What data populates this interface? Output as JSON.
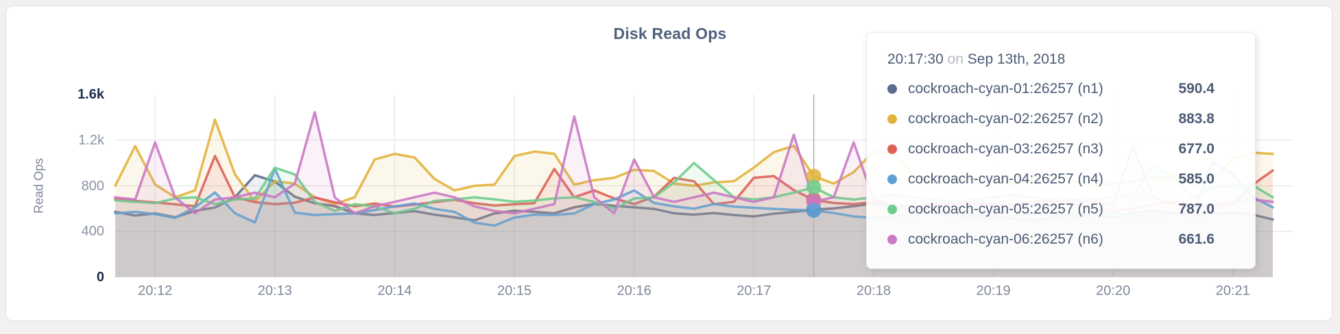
{
  "panel": {
    "title": "Disk Read Ops"
  },
  "colors": {
    "title_text": "#50607c",
    "tick_text": "#8a92a4",
    "tick_text_dark": "#1e2d4d",
    "axis_title_text": "#7d8596",
    "gridline": "#e9e9e9",
    "hover_guideline": "#b0b0b0",
    "tooltip_text": "#4c5b76",
    "tooltip_dim_text": "#b7bbc4",
    "panel_background": "#ffffff",
    "page_background": "#f1f1f2"
  },
  "tooltip": {
    "time": "20:17:30",
    "on": "on",
    "date": "Sep 13th, 2018",
    "rows": [
      {
        "label": "cockroach-cyan-01:26257 (n1)",
        "value": "590.4",
        "color": "#5b6c8f"
      },
      {
        "label": "cockroach-cyan-02:26257 (n2)",
        "value": "883.8",
        "color": "#e2b33c"
      },
      {
        "label": "cockroach-cyan-03:26257 (n3)",
        "value": "677.0",
        "color": "#de6158"
      },
      {
        "label": "cockroach-cyan-04:26257 (n4)",
        "value": "585.0",
        "color": "#5da2d7"
      },
      {
        "label": "cockroach-cyan-05:26257 (n5)",
        "value": "787.0",
        "color": "#6ecd8c"
      },
      {
        "label": "cockroach-cyan-06:26257 (n6)",
        "value": "661.6",
        "color": "#ca79c4"
      }
    ]
  },
  "chart_data": {
    "type": "line",
    "title": "Disk Read Ops",
    "xlabel": "",
    "ylabel": "Read Ops",
    "ylim": [
      0,
      1600
    ],
    "grid": true,
    "legend_position": "tooltip",
    "x_start": "20:11:40",
    "x_step_seconds": 10,
    "x_ticks": [
      "20:12",
      "20:13",
      "20:14",
      "20:15",
      "20:16",
      "20:17",
      "20:18",
      "20:19",
      "20:20",
      "20:21"
    ],
    "y_ticks": [
      {
        "value": 0,
        "label": "0",
        "dark": true
      },
      {
        "value": 400,
        "label": "400",
        "dark": false
      },
      {
        "value": 800,
        "label": "800",
        "dark": false
      },
      {
        "value": 1200,
        "label": "1.2k",
        "dark": false
      },
      {
        "value": 1600,
        "label": "1.6k",
        "dark": true
      }
    ],
    "hover_index": 35,
    "hover_time": "20:17:30",
    "series": [
      {
        "name": "cockroach-cyan-01:26257 (n1)",
        "node": "n1",
        "color": "#5b6c8f",
        "hover_value": 590.4,
        "values": [
          572,
          540,
          558,
          525,
          580,
          610,
          700,
          893,
          838,
          705,
          648,
          622,
          560,
          545,
          562,
          578,
          548,
          524,
          498,
          558,
          582,
          572,
          560,
          612,
          642,
          625,
          612,
          598,
          560,
          548,
          562,
          545,
          532,
          556,
          572,
          590.4,
          602,
          622,
          645,
          622,
          600,
          582,
          560,
          545,
          530,
          512,
          492,
          522,
          562,
          542,
          522,
          562,
          582,
          562,
          542,
          556,
          562,
          548,
          505
        ]
      },
      {
        "name": "cockroach-cyan-02:26257 (n2)",
        "node": "n2",
        "color": "#e2b33c",
        "hover_value": 883.8,
        "values": [
          800,
          1148,
          812,
          700,
          760,
          1380,
          900,
          662,
          840,
          820,
          700,
          640,
          700,
          1030,
          1080,
          1048,
          860,
          760,
          800,
          810,
          1060,
          1100,
          1080,
          810,
          850,
          870,
          940,
          930,
          820,
          800,
          830,
          840,
          960,
          1095,
          1150,
          883.8,
          820,
          920,
          1100,
          1080,
          900,
          820,
          840,
          860,
          840,
          820,
          860,
          880,
          840,
          800,
          820,
          840,
          880,
          860,
          820,
          840,
          1040,
          1090,
          1080
        ]
      },
      {
        "name": "cockroach-cyan-03:26257 (n3)",
        "node": "n3",
        "color": "#de6158",
        "hover_value": 677.0,
        "values": [
          688,
          668,
          655,
          638,
          622,
          1062,
          700,
          658,
          640,
          652,
          698,
          656,
          620,
          645,
          618,
          636,
          658,
          678,
          648,
          628,
          638,
          648,
          948,
          700,
          760,
          690,
          640,
          705,
          870,
          840,
          640,
          660,
          870,
          885,
          762,
          677,
          650,
          640,
          658,
          638,
          618,
          638,
          658,
          638,
          618,
          638,
          658,
          678,
          638,
          598,
          578,
          598,
          638,
          658,
          638,
          618,
          640,
          810,
          935
        ]
      },
      {
        "name": "cockroach-cyan-04:26257 (n4)",
        "node": "n4",
        "color": "#5da2d7",
        "hover_value": 585.0,
        "values": [
          558,
          572,
          552,
          520,
          612,
          742,
          560,
          480,
          950,
          565,
          545,
          552,
          558,
          588,
          620,
          645,
          598,
          572,
          478,
          452,
          522,
          548,
          545,
          558,
          640,
          680,
          760,
          650,
          620,
          600,
          640,
          618,
          608,
          598,
          590,
          585,
          562,
          532,
          520,
          532,
          545,
          560,
          540,
          520,
          512,
          540,
          560,
          545,
          530,
          545,
          560,
          545,
          530,
          555,
          572,
          1010,
          900,
          700,
          612
        ]
      },
      {
        "name": "cockroach-cyan-05:26257 (n5)",
        "node": "n5",
        "color": "#6ecd8c",
        "hover_value": 787.0,
        "values": [
          672,
          660,
          648,
          690,
          700,
          640,
          680,
          690,
          958,
          900,
          660,
          580,
          640,
          620,
          560,
          600,
          668,
          680,
          700,
          682,
          660,
          672,
          690,
          700,
          660,
          600,
          690,
          700,
          830,
          1000,
          850,
          700,
          680,
          700,
          740,
          787,
          700,
          680,
          700,
          720,
          700,
          680,
          660,
          680,
          700,
          720,
          700,
          680,
          660,
          680,
          700,
          720,
          980,
          880,
          700,
          790,
          800,
          805,
          700
        ]
      },
      {
        "name": "cockroach-cyan-06:26257 (n6)",
        "node": "n6",
        "color": "#ca79c4",
        "hover_value": 661.6,
        "values": [
          700,
          680,
          1180,
          700,
          560,
          680,
          700,
          740,
          700,
          820,
          1445,
          700,
          560,
          620,
          660,
          700,
          740,
          700,
          620,
          580,
          560,
          600,
          640,
          1408,
          700,
          560,
          1030,
          700,
          660,
          700,
          740,
          700,
          660,
          700,
          1247,
          661.6,
          700,
          1180,
          680,
          640,
          600,
          620,
          640,
          660,
          640,
          620,
          640,
          660,
          680,
          660,
          640,
          1150,
          700,
          640,
          620,
          640,
          660,
          680,
          660
        ]
      }
    ]
  }
}
